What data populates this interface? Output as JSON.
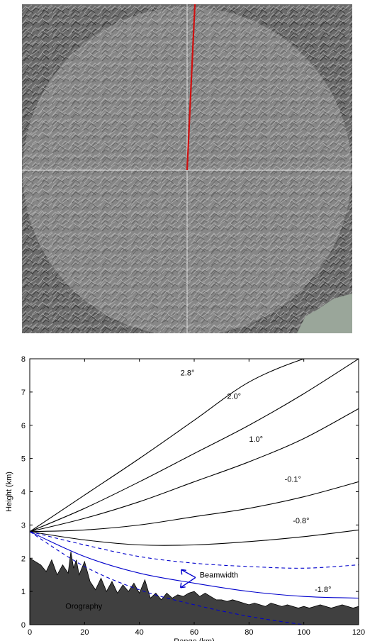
{
  "map": {
    "crosshair_color": "#e6e6e6",
    "beam_color": "#d01010",
    "coverage_color": "#d0d0d0",
    "lake_color": "#9aa69a"
  },
  "chart_data": {
    "type": "line",
    "xlabel": "Range (km)",
    "ylabel": "Height (km)",
    "xlim": [
      0,
      120
    ],
    "ylim": [
      0,
      8
    ],
    "xticks": [
      0,
      20,
      40,
      60,
      80,
      100,
      120
    ],
    "yticks": [
      0,
      1,
      2,
      3,
      4,
      5,
      6,
      7,
      8
    ],
    "series": [
      {
        "name": "2.8°",
        "color": "#000000",
        "style": "solid",
        "x": [
          0,
          20,
          40,
          60,
          80,
          100,
          105
        ],
        "y": [
          2.8,
          3.9,
          5.0,
          6.15,
          7.3,
          8.0,
          8.0
        ]
      },
      {
        "name": "2.0°",
        "color": "#000000",
        "style": "solid",
        "x": [
          0,
          20,
          40,
          60,
          80,
          100,
          120
        ],
        "y": [
          2.8,
          3.5,
          4.3,
          5.15,
          6.0,
          6.95,
          8.0
        ]
      },
      {
        "name": "1.0°",
        "color": "#000000",
        "style": "solid",
        "x": [
          0,
          20,
          40,
          60,
          80,
          100,
          120
        ],
        "y": [
          2.8,
          3.2,
          3.7,
          4.3,
          4.9,
          5.6,
          6.5
        ]
      },
      {
        "name": "-0.1°",
        "color": "#000000",
        "style": "solid",
        "x": [
          0,
          20,
          40,
          60,
          80,
          100,
          120
        ],
        "y": [
          2.8,
          2.85,
          3.0,
          3.25,
          3.5,
          3.85,
          4.3
        ]
      },
      {
        "name": "-0.8°",
        "color": "#000000",
        "style": "solid",
        "x": [
          0,
          20,
          40,
          60,
          80,
          100,
          120
        ],
        "y": [
          2.8,
          2.55,
          2.4,
          2.4,
          2.5,
          2.65,
          2.85
        ]
      },
      {
        "name": "",
        "color": "#0000cc",
        "style": "dashed",
        "x": [
          0,
          20,
          40,
          60,
          80,
          100,
          120
        ],
        "y": [
          2.8,
          2.4,
          2.05,
          1.85,
          1.75,
          1.7,
          1.8
        ]
      },
      {
        "name": "-1.8°",
        "color": "#0000cc",
        "style": "solid",
        "x": [
          0,
          20,
          40,
          60,
          80,
          100,
          120
        ],
        "y": [
          2.8,
          2.05,
          1.55,
          1.25,
          1.0,
          0.85,
          0.8
        ]
      },
      {
        "name": "",
        "color": "#0000cc",
        "style": "dashed",
        "x": [
          0,
          20,
          40,
          60,
          80,
          100,
          120
        ],
        "y": [
          2.8,
          1.75,
          1.05,
          0.6,
          0.25,
          0.0,
          -0.2
        ]
      }
    ],
    "orography": {
      "name": "Orography",
      "color": "#404040",
      "x": [
        0,
        2,
        4,
        6,
        8,
        10,
        12,
        14,
        15,
        16,
        17,
        18,
        20,
        22,
        24,
        26,
        28,
        30,
        32,
        34,
        36,
        38,
        40,
        42,
        44,
        46,
        48,
        50,
        52,
        54,
        56,
        58,
        60,
        62,
        64,
        66,
        68,
        70,
        72,
        74,
        76,
        78,
        80,
        82,
        84,
        86,
        88,
        90,
        92,
        94,
        96,
        98,
        100,
        102,
        104,
        106,
        108,
        110,
        112,
        114,
        116,
        118,
        120
      ],
      "y": [
        2.0,
        1.9,
        1.8,
        1.6,
        1.95,
        1.5,
        1.8,
        1.55,
        2.2,
        1.7,
        1.95,
        1.5,
        1.9,
        1.3,
        1.05,
        1.4,
        1.0,
        1.3,
        0.95,
        1.2,
        1.0,
        1.25,
        0.95,
        1.35,
        0.8,
        0.95,
        0.75,
        0.95,
        0.8,
        0.9,
        0.85,
        0.95,
        1.0,
        0.85,
        0.95,
        0.85,
        0.75,
        0.75,
        0.7,
        0.75,
        0.7,
        0.65,
        0.6,
        0.65,
        0.6,
        0.55,
        0.65,
        0.6,
        0.55,
        0.6,
        0.55,
        0.5,
        0.55,
        0.5,
        0.55,
        0.6,
        0.55,
        0.5,
        0.55,
        0.6,
        0.55,
        0.5,
        0.55
      ]
    },
    "annotations": [
      {
        "text": "2.8°",
        "x": 55,
        "y": 7.5,
        "color": "#000000"
      },
      {
        "text": "2.0°",
        "x": 72,
        "y": 6.8,
        "color": "#000000"
      },
      {
        "text": "1.0°",
        "x": 80,
        "y": 5.5,
        "color": "#000000"
      },
      {
        "text": "-0.1°",
        "x": 93,
        "y": 4.3,
        "color": "#000000"
      },
      {
        "text": "-0.8°",
        "x": 96,
        "y": 3.05,
        "color": "#000000"
      },
      {
        "text": "Beamwidth",
        "x": 62,
        "y": 1.42,
        "color": "#0000cc"
      },
      {
        "text": "-1.8°",
        "x": 104,
        "y": 0.98,
        "color": "#0000cc"
      },
      {
        "text": "Orography",
        "x": 13,
        "y": 0.48,
        "color": "#cc0000"
      }
    ]
  }
}
